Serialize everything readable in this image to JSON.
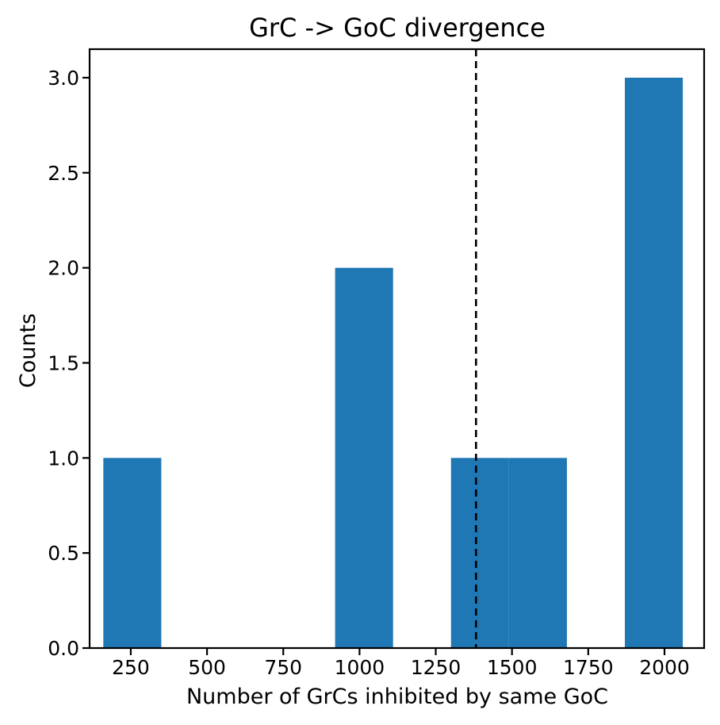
{
  "chart_data": {
    "type": "bar",
    "title": "GrC -> GoC divergence",
    "xlabel": "Number of GrCs inhibited by same GoC",
    "ylabel": "Counts",
    "xlim": [
      115,
      2130
    ],
    "ylim": [
      0,
      3.15
    ],
    "x_ticks": [
      250,
      500,
      750,
      1000,
      1250,
      1500,
      1750,
      2000
    ],
    "x_tick_labels": [
      "250",
      "500",
      "750",
      "1000",
      "1250",
      "1500",
      "1750",
      "2000"
    ],
    "y_ticks": [
      0,
      0.5,
      1,
      1.5,
      2,
      2.5,
      3
    ],
    "y_tick_labels": [
      "0.0",
      "0.5",
      "1.0",
      "1.5",
      "2.0",
      "2.5",
      "3.0"
    ],
    "bins": [
      {
        "start": 160,
        "end": 350,
        "count": 1
      },
      {
        "start": 350,
        "end": 540,
        "count": 0
      },
      {
        "start": 540,
        "end": 730,
        "count": 0
      },
      {
        "start": 730,
        "end": 920,
        "count": 0
      },
      {
        "start": 920,
        "end": 1110,
        "count": 2
      },
      {
        "start": 1110,
        "end": 1300,
        "count": 0
      },
      {
        "start": 1300,
        "end": 1490,
        "count": 1
      },
      {
        "start": 1490,
        "end": 1680,
        "count": 1
      },
      {
        "start": 1680,
        "end": 1870,
        "count": 0
      },
      {
        "start": 1870,
        "end": 2060,
        "count": 3
      }
    ],
    "reference_line": {
      "x": 1382,
      "style": "dashed"
    },
    "grid": false,
    "bar_color": "#1f77b4",
    "line_color": "#000000"
  }
}
